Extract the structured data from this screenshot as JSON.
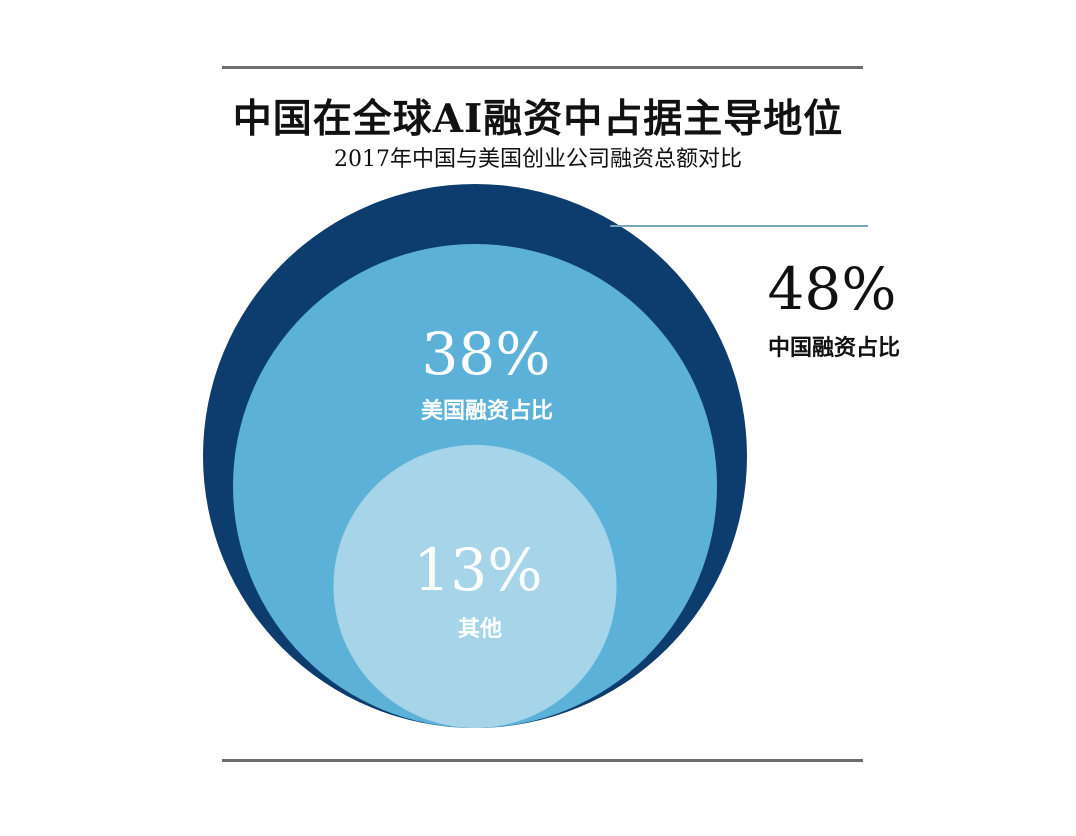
{
  "title": "中国在全球AI融资中占据主导地位",
  "subtitle": "2017年中国与美国创业公司融资总额对比",
  "colors": {
    "china": "#0c3d6e",
    "usa": "#5bb1d7",
    "other": "#a6d4e8",
    "rule": "#6d6d6d",
    "leader": "#7aa6c4"
  },
  "chart_data": {
    "type": "pie",
    "title": "中国在全球AI融资中占据主导地位",
    "subtitle": "2017年中国与美国创业公司融资总额对比",
    "categories": [
      "中国融资占比",
      "美国融资占比",
      "其他"
    ],
    "values": [
      48,
      38,
      13
    ],
    "labels": [
      {
        "value_text": "48%",
        "category": "中国融资占比"
      },
      {
        "value_text": "38%",
        "category": "美国融资占比"
      },
      {
        "value_text": "13%",
        "category": "其他"
      }
    ],
    "unit": "%"
  }
}
